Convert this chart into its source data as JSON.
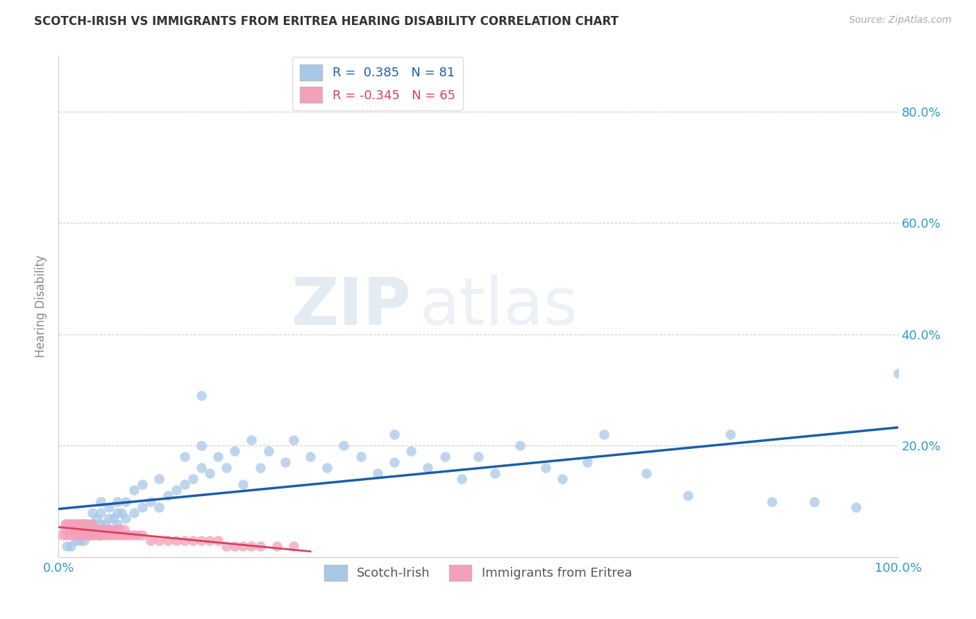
{
  "title": "SCOTCH-IRISH VS IMMIGRANTS FROM ERITREA HEARING DISABILITY CORRELATION CHART",
  "source": "Source: ZipAtlas.com",
  "ylabel": "Hearing Disability",
  "r_blue": 0.385,
  "n_blue": 81,
  "r_pink": -0.345,
  "n_pink": 65,
  "blue_label": "Scotch-Irish",
  "pink_label": "Immigrants from Eritrea",
  "xlim": [
    0.0,
    1.0
  ],
  "ylim": [
    0.0,
    0.9
  ],
  "x_ticks": [
    0.0,
    0.2,
    0.4,
    0.6,
    0.8,
    1.0
  ],
  "x_tick_labels": [
    "0.0%",
    "",
    "",
    "",
    "",
    "100.0%"
  ],
  "y_ticks": [
    0.0,
    0.2,
    0.4,
    0.6,
    0.8
  ],
  "y_tick_labels_right": [
    "",
    "20.0%",
    "40.0%",
    "60.0%",
    "80.0%"
  ],
  "background_color": "#ffffff",
  "grid_color": "#cccccc",
  "blue_color": "#a8c8e8",
  "pink_color": "#f4a0b8",
  "blue_line_color": "#1a5fa8",
  "pink_line_color": "#d94060",
  "watermark_zip": "ZIP",
  "watermark_atlas": "atlas",
  "blue_scatter_x": [
    0.01,
    0.015,
    0.02,
    0.02,
    0.025,
    0.025,
    0.03,
    0.03,
    0.03,
    0.035,
    0.035,
    0.04,
    0.04,
    0.04,
    0.045,
    0.045,
    0.05,
    0.05,
    0.05,
    0.05,
    0.055,
    0.06,
    0.06,
    0.06,
    0.065,
    0.07,
    0.07,
    0.07,
    0.075,
    0.08,
    0.08,
    0.09,
    0.09,
    0.1,
    0.1,
    0.11,
    0.12,
    0.12,
    0.13,
    0.14,
    0.15,
    0.15,
    0.16,
    0.17,
    0.17,
    0.18,
    0.19,
    0.2,
    0.21,
    0.22,
    0.23,
    0.24,
    0.25,
    0.27,
    0.28,
    0.3,
    0.32,
    0.34,
    0.36,
    0.38,
    0.4,
    0.4,
    0.42,
    0.44,
    0.46,
    0.48,
    0.5,
    0.52,
    0.55,
    0.58,
    0.6,
    0.63,
    0.65,
    0.7,
    0.75,
    0.8,
    0.85,
    0.9,
    0.95,
    1.0,
    0.17
  ],
  "blue_scatter_y": [
    0.02,
    0.02,
    0.03,
    0.04,
    0.03,
    0.05,
    0.03,
    0.05,
    0.06,
    0.04,
    0.06,
    0.04,
    0.06,
    0.08,
    0.05,
    0.07,
    0.04,
    0.06,
    0.08,
    0.1,
    0.06,
    0.05,
    0.07,
    0.09,
    0.07,
    0.06,
    0.08,
    0.1,
    0.08,
    0.07,
    0.1,
    0.08,
    0.12,
    0.09,
    0.13,
    0.1,
    0.09,
    0.14,
    0.11,
    0.12,
    0.13,
    0.18,
    0.14,
    0.16,
    0.2,
    0.15,
    0.18,
    0.16,
    0.19,
    0.13,
    0.21,
    0.16,
    0.19,
    0.17,
    0.21,
    0.18,
    0.16,
    0.2,
    0.18,
    0.15,
    0.17,
    0.22,
    0.19,
    0.16,
    0.18,
    0.14,
    0.18,
    0.15,
    0.2,
    0.16,
    0.14,
    0.17,
    0.22,
    0.15,
    0.11,
    0.22,
    0.1,
    0.1,
    0.09,
    0.33,
    0.29
  ],
  "pink_scatter_x": [
    0.005,
    0.007,
    0.008,
    0.01,
    0.01,
    0.012,
    0.013,
    0.015,
    0.015,
    0.017,
    0.018,
    0.02,
    0.02,
    0.022,
    0.023,
    0.025,
    0.025,
    0.027,
    0.028,
    0.03,
    0.03,
    0.032,
    0.033,
    0.035,
    0.036,
    0.038,
    0.04,
    0.04,
    0.042,
    0.045,
    0.047,
    0.048,
    0.05,
    0.052,
    0.055,
    0.057,
    0.06,
    0.062,
    0.065,
    0.067,
    0.07,
    0.072,
    0.075,
    0.078,
    0.08,
    0.085,
    0.09,
    0.095,
    0.1,
    0.11,
    0.12,
    0.13,
    0.14,
    0.15,
    0.16,
    0.17,
    0.18,
    0.19,
    0.2,
    0.21,
    0.22,
    0.23,
    0.24,
    0.26,
    0.28
  ],
  "pink_scatter_y": [
    0.04,
    0.05,
    0.06,
    0.04,
    0.06,
    0.05,
    0.06,
    0.04,
    0.06,
    0.05,
    0.06,
    0.04,
    0.06,
    0.05,
    0.06,
    0.04,
    0.06,
    0.05,
    0.06,
    0.04,
    0.06,
    0.05,
    0.06,
    0.04,
    0.05,
    0.04,
    0.05,
    0.06,
    0.04,
    0.05,
    0.04,
    0.05,
    0.04,
    0.05,
    0.04,
    0.05,
    0.04,
    0.05,
    0.04,
    0.05,
    0.04,
    0.05,
    0.04,
    0.05,
    0.04,
    0.04,
    0.04,
    0.04,
    0.04,
    0.03,
    0.03,
    0.03,
    0.03,
    0.03,
    0.03,
    0.03,
    0.03,
    0.03,
    0.02,
    0.02,
    0.02,
    0.02,
    0.02,
    0.02,
    0.02
  ]
}
